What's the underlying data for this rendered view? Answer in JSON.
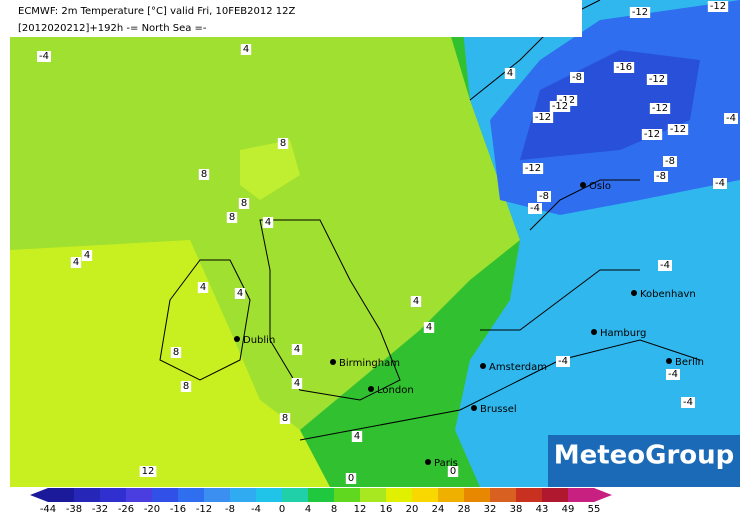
{
  "header": {
    "line1": "ECMWF: 2m Temperature [°C] valid Fri, 10FEB2012 12Z",
    "line2": "[2012020212]+192h -= North Sea =-"
  },
  "cities": [
    "Dublin",
    "Birmingham",
    "London",
    "Brussel",
    "Paris",
    "Amsterdam",
    "Hamburg",
    "Kobenhavn",
    "Berlin",
    "Oslo"
  ],
  "contour_labels": [
    -12,
    -12,
    -4,
    4,
    4,
    -8,
    -16,
    -12,
    -12,
    -12,
    -12,
    -12,
    -12,
    -12,
    -8,
    -12,
    -8,
    -4,
    -8,
    -4,
    8,
    8,
    8,
    8,
    4,
    4,
    4,
    4,
    4,
    8,
    8,
    4,
    4,
    4,
    8,
    4,
    4,
    -4,
    -4,
    -4,
    -4,
    12,
    0,
    0,
    -4
  ],
  "logo": "MeteoGroup",
  "legend": {
    "ticks": [
      -44,
      -38,
      -32,
      -26,
      -20,
      -16,
      -12,
      -8,
      -4,
      0,
      4,
      8,
      12,
      16,
      20,
      24,
      28,
      32,
      38,
      43,
      49,
      55
    ],
    "colors": [
      "#1a1a9a",
      "#2626b8",
      "#3030d0",
      "#4a3ee0",
      "#3050e8",
      "#2f6fef",
      "#3b8ff0",
      "#30aaf0",
      "#20c4e8",
      "#20d0a8",
      "#20c840",
      "#60d820",
      "#a8e820",
      "#e0f000",
      "#f8d800",
      "#f0b000",
      "#e88800",
      "#d86020",
      "#c83020",
      "#b01830",
      "#c82080"
    ]
  }
}
